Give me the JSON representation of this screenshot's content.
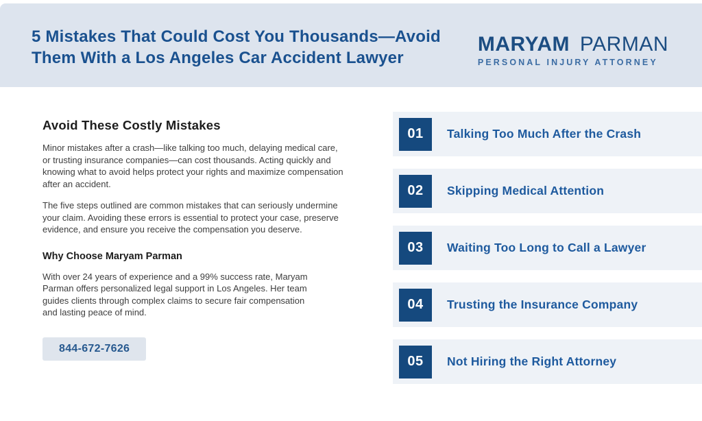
{
  "header": {
    "title": "5 Mistakes That Could Cost You Thousands—Avoid Them With a Los Angeles Car Accident Lawyer",
    "logo": {
      "name_bold": "MARYAM",
      "name_light": "PARMAN",
      "tagline": "PERSONAL INJURY ATTORNEY"
    }
  },
  "left": {
    "heading": "Avoid These Costly Mistakes",
    "paragraphs": [
      "Minor mistakes after a crash—like talking too much, delaying medical care, or trusting insurance companies—can cost thousands. Acting quickly and knowing what to avoid helps protect your rights and maximize compensation after an accident.",
      "The five steps outlined are common mistakes that can seriously undermine your claim. Avoiding these errors is essential to protect your case, preserve evidence, and ensure you receive the compensation you deserve."
    ],
    "subheading": "Why Choose Maryam Parman",
    "why_text": "With over 24 years of experience and a 99% success rate, Maryam Parman offers personalized legal support in Los Angeles. Her team guides clients through complex claims to secure fair compensation and lasting peace of mind.",
    "phone": "844-672-7626"
  },
  "mistakes": [
    {
      "number": "01",
      "title": "Talking Too Much After the Crash"
    },
    {
      "number": "02",
      "title": "Skipping Medical Attention"
    },
    {
      "number": "03",
      "title": "Waiting Too Long to Call a Lawyer"
    },
    {
      "number": "04",
      "title": "Trusting the Insurance Company"
    },
    {
      "number": "05",
      "title": "Not Hiring the Right Attorney"
    }
  ],
  "colors": {
    "band_bg": "#dde4ee",
    "header_title_blue": "#1a518f",
    "item_title_blue": "#1e5a9e",
    "number_box_navy": "#15497e",
    "row_bg": "#eef2f7",
    "button_bg": "#dfe5ed",
    "button_text": "#27598f",
    "body_text": "#3d3d3d"
  }
}
